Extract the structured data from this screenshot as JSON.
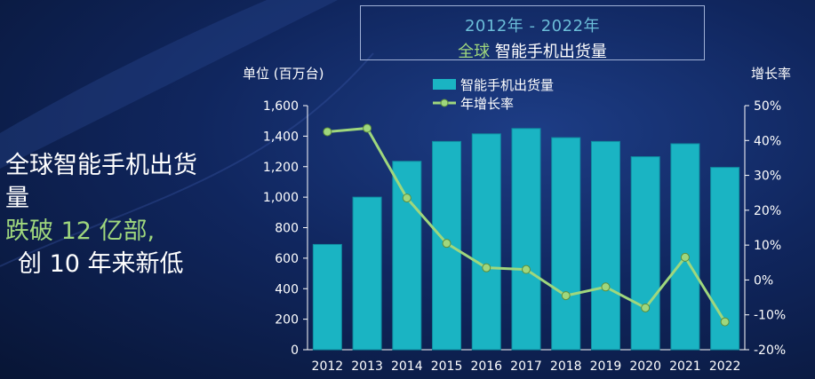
{
  "header": {
    "title_line1": "2012年 - 2022年",
    "title_line2_prefix": "全球",
    "title_line2_main": "智能手机出货量"
  },
  "headline": {
    "line1": "全球智能手机出货",
    "line2_prefix": "量",
    "line2_highlight": "跌破 12 亿部,",
    "line3": "创 10 年来新低"
  },
  "colors": {
    "bar": "#1ab4c3",
    "bar_edge": "#0f8da0",
    "line": "#9fd77d",
    "highlight_text": "#9fd77d",
    "title_blue": "#6bbdd8"
  },
  "chart_data": {
    "type": "bar",
    "categories": [
      "2012",
      "2013",
      "2014",
      "2015",
      "2016",
      "2017",
      "2018",
      "2019",
      "2020",
      "2021",
      "2022"
    ],
    "series": [
      {
        "name": "智能手机出货量",
        "type": "bar",
        "axis": "left",
        "values": [
          690,
          1000,
          1235,
          1365,
          1415,
          1450,
          1390,
          1365,
          1265,
          1350,
          1195
        ]
      },
      {
        "name": "年增长率",
        "type": "line",
        "axis": "right",
        "values": [
          42.5,
          43.5,
          23.5,
          10.5,
          3.5,
          3,
          -4.5,
          -2,
          -8,
          6.5,
          -12
        ]
      }
    ],
    "ylabel_left": "单位 (百万台)",
    "ylabel_right": "增长率",
    "ylim_left": [
      0,
      1600
    ],
    "ylim_right": [
      -20,
      50
    ],
    "yticks_left": [
      "0",
      "200",
      "400",
      "600",
      "800",
      "1,000",
      "1,200",
      "1,400",
      "1,600"
    ],
    "yticks_right": [
      "-20%",
      "-10%",
      "0%",
      "10%",
      "20%",
      "30%",
      "40%",
      "50%"
    ],
    "legend_position": "top-center",
    "grid": false
  }
}
